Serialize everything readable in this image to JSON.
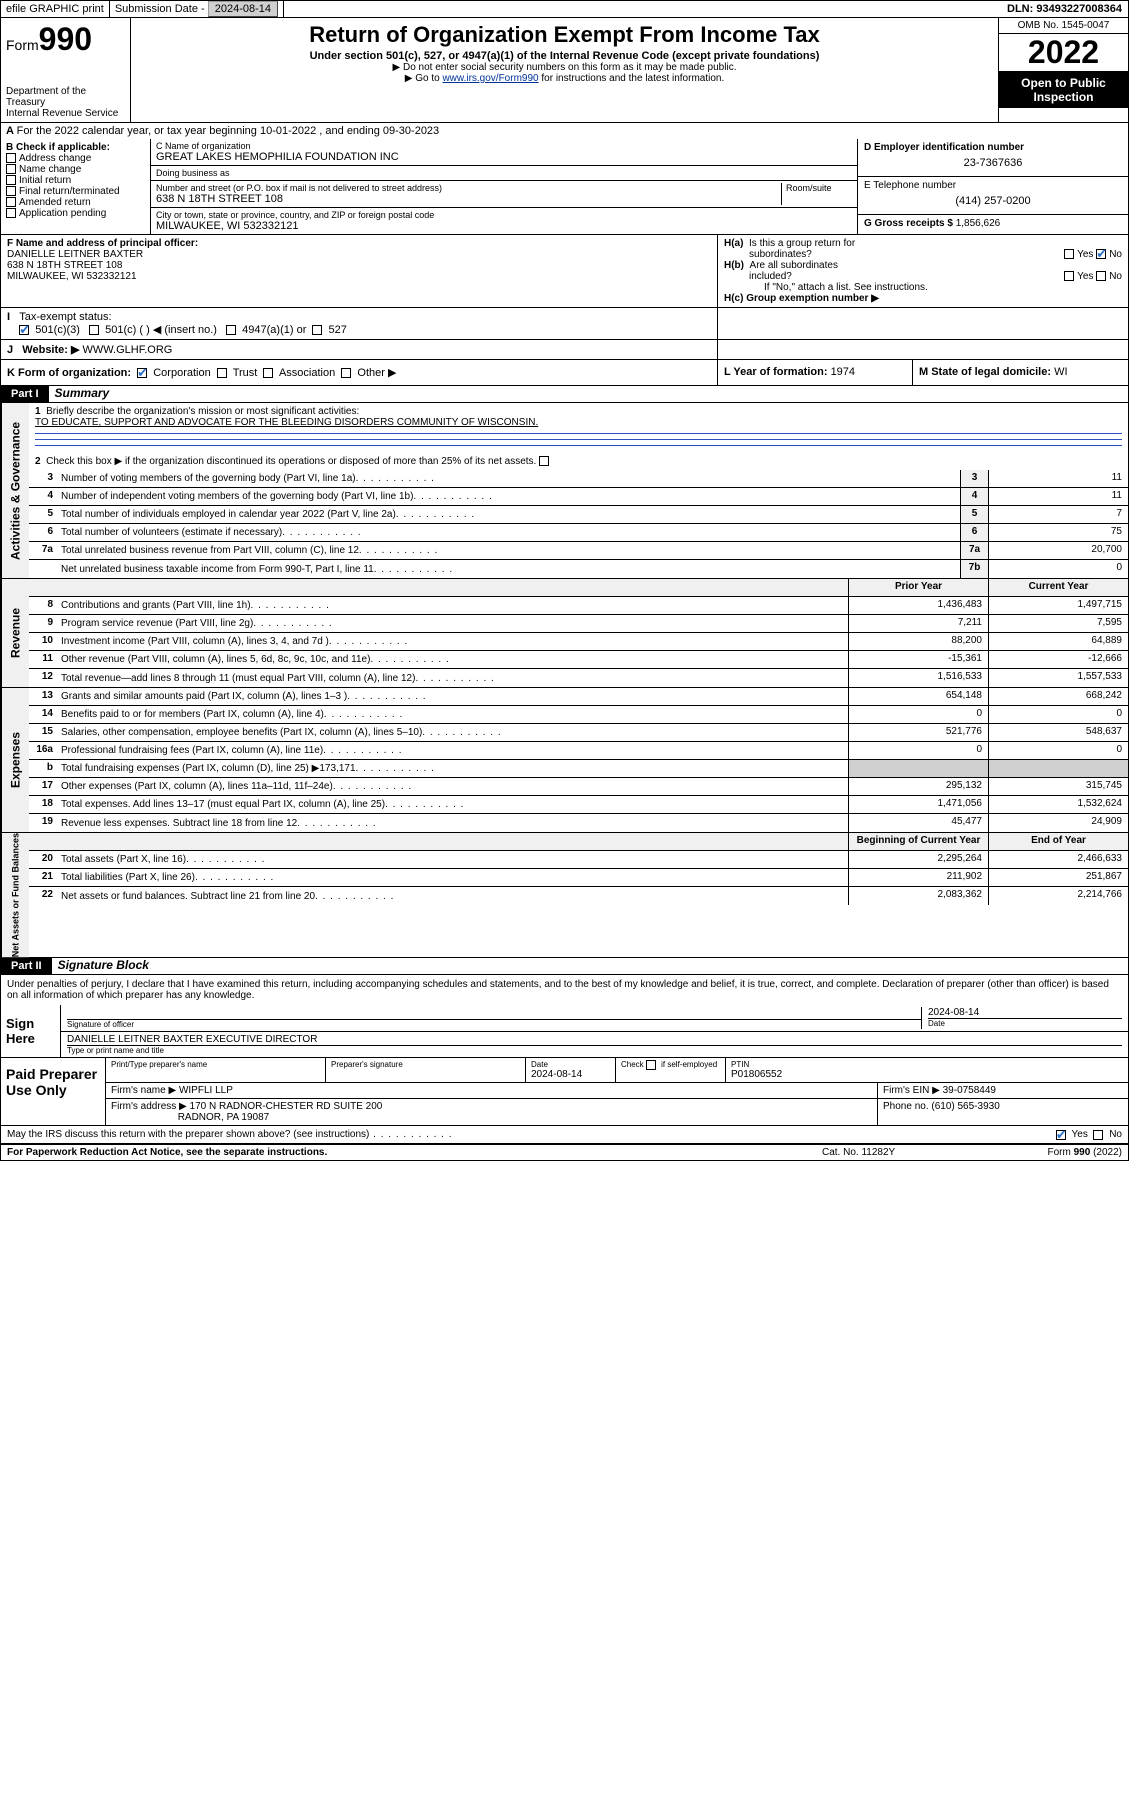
{
  "topbar": {
    "efile": "efile GRAPHIC print",
    "subdate_label": "Submission Date - ",
    "subdate": "2024-08-14",
    "dln_label": "DLN: ",
    "dln": "93493227008364"
  },
  "header": {
    "form_prefix": "Form",
    "form_number": "990",
    "dept": "Department of the Treasury",
    "irs": "Internal Revenue Service",
    "title": "Return of Organization Exempt From Income Tax",
    "subtitle": "Under section 501(c), 527, or 4947(a)(1) of the Internal Revenue Code (except private foundations)",
    "note1": "▶ Do not enter social security numbers on this form as it may be made public.",
    "note2_pre": "▶ Go to ",
    "note2_link": "www.irs.gov/Form990",
    "note2_post": " for instructions and the latest information.",
    "omb": "OMB No. 1545-0047",
    "year": "2022",
    "open": "Open to Public Inspection"
  },
  "secA": {
    "text": "For the 2022 calendar year, or tax year beginning 10-01-2022   , and ending 09-30-2023"
  },
  "boxB": {
    "label": "B Check if applicable:",
    "items": [
      "Address change",
      "Name change",
      "Initial return",
      "Final return/terminated",
      "Amended return",
      "Application pending"
    ]
  },
  "boxC": {
    "name_label": "C Name of organization",
    "name": "GREAT LAKES HEMOPHILIA FOUNDATION INC",
    "dba_label": "Doing business as",
    "dba": "",
    "street_label": "Number and street (or P.O. box if mail is not delivered to street address)",
    "room_label": "Room/suite",
    "street": "638 N 18TH STREET 108",
    "city_label": "City or town, state or province, country, and ZIP or foreign postal code",
    "city": "MILWAUKEE, WI  532332121"
  },
  "boxD": {
    "label": "D Employer identification number",
    "val": "23-7367636"
  },
  "boxE": {
    "label": "E Telephone number",
    "val": "(414) 257-0200"
  },
  "boxG": {
    "label": "G Gross receipts $ ",
    "val": "1,856,626"
  },
  "boxF": {
    "label": "F Name and address of principal officer:",
    "name": "DANIELLE LEITNER BAXTER",
    "addr1": "638 N 18TH STREET 108",
    "addr2": "MILWAUKEE, WI  532332121"
  },
  "boxH": {
    "a_label": "H(a)  Is this a group return for subordinates?",
    "b_label": "H(b)  Are all subordinates included?",
    "b_note": "If \"No,\" attach a list. See instructions.",
    "c_label": "H(c)  Group exemption number ▶",
    "yes": "Yes",
    "no": "No"
  },
  "rowI": {
    "label": "Tax-exempt status:",
    "opt1": "501(c)(3)",
    "opt2": "501(c) (  ) ◀ (insert no.)",
    "opt3": "4947(a)(1) or",
    "opt4": "527"
  },
  "rowJ": {
    "label": "Website: ▶ ",
    "val": "WWW.GLHF.ORG"
  },
  "rowK": {
    "label": "K Form of organization:",
    "opts": [
      "Corporation",
      "Trust",
      "Association",
      "Other ▶"
    ],
    "L_label": "L Year of formation: ",
    "L_val": "1974",
    "M_label": "M State of legal domicile: ",
    "M_val": "WI"
  },
  "part1": {
    "hdr": "Part I",
    "title": "Summary"
  },
  "mission": {
    "label": "Briefly describe the organization's mission or most significant activities:",
    "text": "TO EDUCATE, SUPPORT AND ADVOCATE FOR THE BLEEDING DISORDERS COMMUNITY OF WISCONSIN."
  },
  "line2": "Check this box ▶        if the organization discontinued its operations or disposed of more than 25% of its net assets.",
  "gov_lines": [
    {
      "n": "3",
      "t": "Number of voting members of the governing body (Part VI, line 1a)",
      "b": "3",
      "v": "11"
    },
    {
      "n": "4",
      "t": "Number of independent voting members of the governing body (Part VI, line 1b)",
      "b": "4",
      "v": "11"
    },
    {
      "n": "5",
      "t": "Total number of individuals employed in calendar year 2022 (Part V, line 2a)",
      "b": "5",
      "v": "7"
    },
    {
      "n": "6",
      "t": "Total number of volunteers (estimate if necessary)",
      "b": "6",
      "v": "75"
    },
    {
      "n": "7a",
      "t": "Total unrelated business revenue from Part VIII, column (C), line 12",
      "b": "7a",
      "v": "20,700"
    },
    {
      "n": "",
      "t": "Net unrelated business taxable income from Form 990-T, Part I, line 11",
      "b": "7b",
      "v": "0"
    }
  ],
  "col_hdrs": {
    "prior": "Prior Year",
    "current": "Current Year"
  },
  "rev_lines": [
    {
      "n": "8",
      "t": "Contributions and grants (Part VIII, line 1h)",
      "p": "1,436,483",
      "c": "1,497,715"
    },
    {
      "n": "9",
      "t": "Program service revenue (Part VIII, line 2g)",
      "p": "7,211",
      "c": "7,595"
    },
    {
      "n": "10",
      "t": "Investment income (Part VIII, column (A), lines 3, 4, and 7d )",
      "p": "88,200",
      "c": "64,889"
    },
    {
      "n": "11",
      "t": "Other revenue (Part VIII, column (A), lines 5, 6d, 8c, 9c, 10c, and 11e)",
      "p": "-15,361",
      "c": "-12,666"
    },
    {
      "n": "12",
      "t": "Total revenue—add lines 8 through 11 (must equal Part VIII, column (A), line 12)",
      "p": "1,516,533",
      "c": "1,557,533"
    }
  ],
  "exp_lines": [
    {
      "n": "13",
      "t": "Grants and similar amounts paid (Part IX, column (A), lines 1–3 )",
      "p": "654,148",
      "c": "668,242"
    },
    {
      "n": "14",
      "t": "Benefits paid to or for members (Part IX, column (A), line 4)",
      "p": "0",
      "c": "0"
    },
    {
      "n": "15",
      "t": "Salaries, other compensation, employee benefits (Part IX, column (A), lines 5–10)",
      "p": "521,776",
      "c": "548,637"
    },
    {
      "n": "16a",
      "t": "Professional fundraising fees (Part IX, column (A), line 11e)",
      "p": "0",
      "c": "0"
    },
    {
      "n": "b",
      "t": "Total fundraising expenses (Part IX, column (D), line 25) ▶173,171",
      "p": "",
      "c": "",
      "shade": true
    },
    {
      "n": "17",
      "t": "Other expenses (Part IX, column (A), lines 11a–11d, 11f–24e)",
      "p": "295,132",
      "c": "315,745"
    },
    {
      "n": "18",
      "t": "Total expenses. Add lines 13–17 (must equal Part IX, column (A), line 25)",
      "p": "1,471,056",
      "c": "1,532,624"
    },
    {
      "n": "19",
      "t": "Revenue less expenses. Subtract line 18 from line 12",
      "p": "45,477",
      "c": "24,909"
    }
  ],
  "na_hdrs": {
    "beg": "Beginning of Current Year",
    "end": "End of Year"
  },
  "na_lines": [
    {
      "n": "20",
      "t": "Total assets (Part X, line 16)",
      "p": "2,295,264",
      "c": "2,466,633"
    },
    {
      "n": "21",
      "t": "Total liabilities (Part X, line 26)",
      "p": "211,902",
      "c": "251,867"
    },
    {
      "n": "22",
      "t": "Net assets or fund balances. Subtract line 21 from line 20",
      "p": "2,083,362",
      "c": "2,214,766"
    }
  ],
  "part2": {
    "hdr": "Part II",
    "title": "Signature Block"
  },
  "sig": {
    "decl": "Under penalties of perjury, I declare that I have examined this return, including accompanying schedules and statements, and to the best of my knowledge and belief, it is true, correct, and complete. Declaration of preparer (other than officer) is based on all information of which preparer has any knowledge.",
    "sign_here": "Sign Here",
    "sig_officer": "Signature of officer",
    "date": "Date",
    "sig_date": "2024-08-14",
    "name_title": "DANIELLE LEITNER BAXTER  EXECUTIVE DIRECTOR",
    "type_name": "Type or print name and title"
  },
  "paid": {
    "label": "Paid Preparer Use Only",
    "h1": "Print/Type preparer's name",
    "h2": "Preparer's signature",
    "h3": "Date",
    "h3v": "2024-08-14",
    "h4": "Check        if self-employed",
    "h5": "PTIN",
    "h5v": "P01806552",
    "firm_name_l": "Firm's name    ▶ ",
    "firm_name": "WIPFLI LLP",
    "firm_ein_l": "Firm's EIN ▶ ",
    "firm_ein": "39-0758449",
    "firm_addr_l": "Firm's address ▶ ",
    "firm_addr1": "170 N RADNOR-CHESTER RD SUITE 200",
    "firm_addr2": "RADNOR, PA  19087",
    "phone_l": "Phone no. ",
    "phone": "(610) 565-3930"
  },
  "discuss": {
    "text": "May the IRS discuss this return with the preparer shown above? (see instructions)",
    "yes": "Yes",
    "no": "No"
  },
  "footer": {
    "l": "For Paperwork Reduction Act Notice, see the separate instructions.",
    "m": "Cat. No. 11282Y",
    "r": "Form 990 (2022)"
  },
  "vtabs": {
    "gov": "Activities & Governance",
    "rev": "Revenue",
    "exp": "Expenses",
    "na": "Net Assets or Fund Balances"
  }
}
